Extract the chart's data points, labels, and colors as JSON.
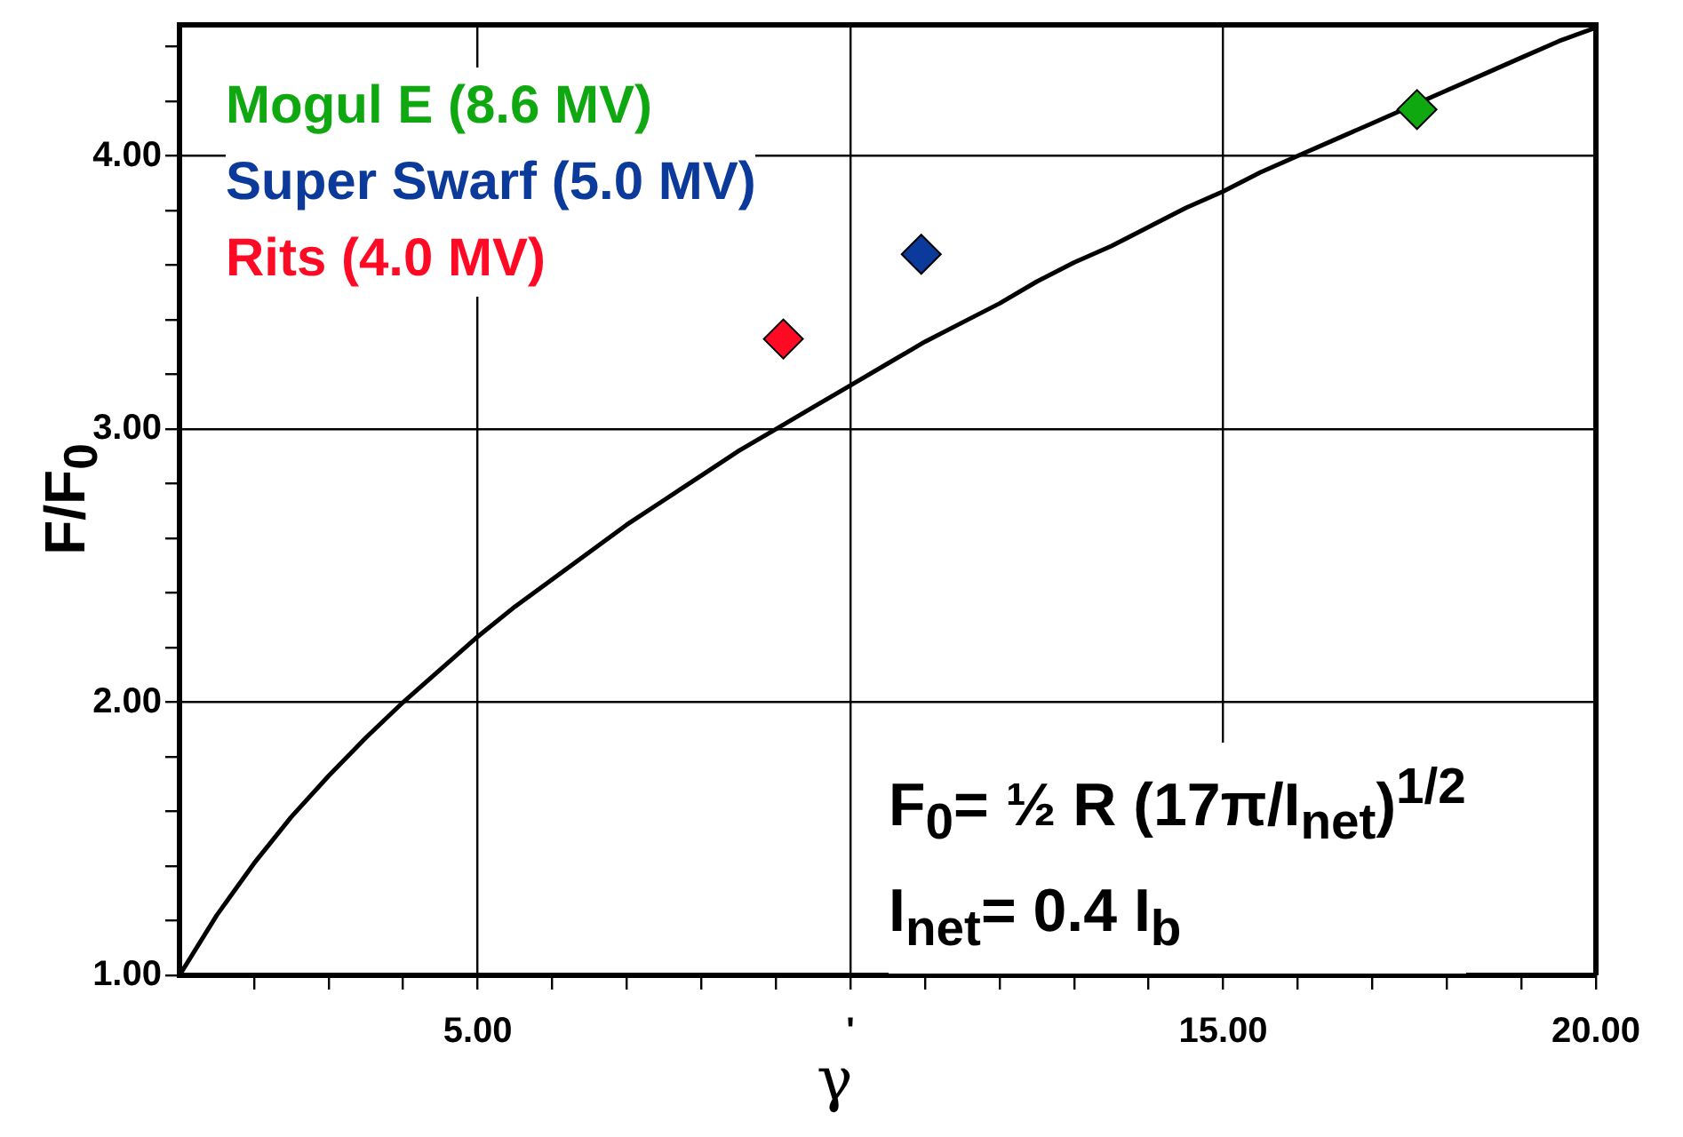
{
  "chart_data": {
    "type": "scatter",
    "xlabel": "γ",
    "ylabel": "F/F$_{0}$",
    "xlim": [
      1,
      20
    ],
    "ylim": [
      1,
      4.48
    ],
    "xticks": [
      {
        "value": 2,
        "label": null
      },
      {
        "value": 3,
        "label": null
      },
      {
        "value": 4,
        "label": null
      },
      {
        "value": 5,
        "label": "5.00"
      },
      {
        "value": 6,
        "label": null
      },
      {
        "value": 7,
        "label": null
      },
      {
        "value": 8,
        "label": null
      },
      {
        "value": 9,
        "label": null
      },
      {
        "value": 10,
        "label": "'"
      },
      {
        "value": 11,
        "label": null
      },
      {
        "value": 12,
        "label": null
      },
      {
        "value": 13,
        "label": null
      },
      {
        "value": 14,
        "label": null
      },
      {
        "value": 15,
        "label": "15.00"
      },
      {
        "value": 16,
        "label": null
      },
      {
        "value": 17,
        "label": null
      },
      {
        "value": 18,
        "label": null
      },
      {
        "value": 19,
        "label": null
      },
      {
        "value": 20,
        "label": "20.00"
      }
    ],
    "yticks": [
      {
        "value": 1,
        "label": "1.00"
      },
      {
        "value": 1.2,
        "label": null
      },
      {
        "value": 1.4,
        "label": null
      },
      {
        "value": 1.6,
        "label": null
      },
      {
        "value": 1.8,
        "label": null
      },
      {
        "value": 2,
        "label": "2.00"
      },
      {
        "value": 2.2,
        "label": null
      },
      {
        "value": 2.4,
        "label": null
      },
      {
        "value": 2.6,
        "label": null
      },
      {
        "value": 2.8,
        "label": null
      },
      {
        "value": 3,
        "label": "3.00"
      },
      {
        "value": 3.2,
        "label": null
      },
      {
        "value": 3.4,
        "label": null
      },
      {
        "value": 3.6,
        "label": null
      },
      {
        "value": 3.8,
        "label": null
      },
      {
        "value": 4,
        "label": "4.00"
      },
      {
        "value": 4.2,
        "label": null
      },
      {
        "value": 4.4,
        "label": null
      }
    ],
    "grid": true,
    "legend": "top left",
    "marker": "diamond",
    "series": [
      {
        "type": "line",
        "color": "#000000",
        "marker": "none",
        "line_style": "solid",
        "x": [
          1,
          1.5,
          2,
          2.5,
          3,
          3.5,
          4,
          4.5,
          5,
          5.5,
          6,
          6.5,
          7,
          7.5,
          8,
          8.5,
          9,
          9.5,
          10,
          10.5,
          11,
          11.5,
          12,
          12.5,
          13,
          13.5,
          14,
          14.5,
          15,
          15.5,
          16,
          16.5,
          17,
          17.5,
          18,
          18.5,
          19,
          19.5,
          20
        ],
        "values": [
          1.0,
          1.22,
          1.41,
          1.58,
          1.73,
          1.87,
          2.0,
          2.12,
          2.24,
          2.35,
          2.45,
          2.55,
          2.65,
          2.74,
          2.83,
          2.92,
          3.0,
          3.08,
          3.16,
          3.24,
          3.32,
          3.39,
          3.46,
          3.54,
          3.61,
          3.67,
          3.74,
          3.81,
          3.87,
          3.94,
          4.0,
          4.06,
          4.12,
          4.18,
          4.24,
          4.3,
          4.36,
          4.42,
          4.47
        ]
      },
      {
        "name": "Mogul E (8.6 MV)",
        "color": "#10a810",
        "x": [
          17.6
        ],
        "values": [
          4.17
        ]
      },
      {
        "name": "Super Swarf (5.0 MV)",
        "color": "#0b3a9a",
        "x": [
          10.95
        ],
        "values": [
          3.64
        ]
      },
      {
        "name": "Rits (4.0 MV)",
        "color": "#ff0a25",
        "x": [
          9.1
        ],
        "values": [
          3.33
        ]
      }
    ],
    "annotations": [
      "F$_{0}$= ½ R (17π/I$_{net}$)$^{1/2}$",
      "I$_{net}$= 0.4 I$_{b}$"
    ]
  }
}
